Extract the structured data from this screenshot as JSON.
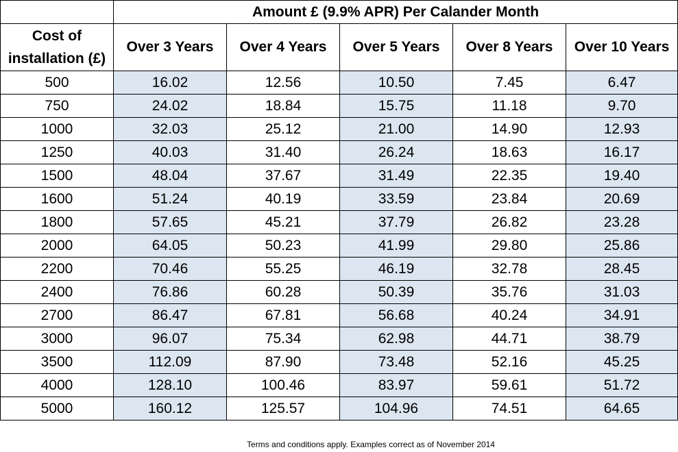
{
  "table": {
    "title": "Amount £ (9.9% APR) Per Calander Month",
    "cost_header": "Cost of installation (£)",
    "columns": [
      "Over 3 Years",
      "Over 4 Years",
      "Over 5 Years",
      "Over 8 Years",
      "Over 10 Years"
    ],
    "shade_color": "#dce6f1",
    "rows": [
      {
        "cost": "500",
        "values": [
          "16.02",
          "12.56",
          "10.50",
          "7.45",
          "6.47"
        ]
      },
      {
        "cost": "750",
        "values": [
          "24.02",
          "18.84",
          "15.75",
          "11.18",
          "9.70"
        ]
      },
      {
        "cost": "1000",
        "values": [
          "32.03",
          "25.12",
          "21.00",
          "14.90",
          "12.93"
        ]
      },
      {
        "cost": "1250",
        "values": [
          "40.03",
          "31.40",
          "26.24",
          "18.63",
          "16.17"
        ]
      },
      {
        "cost": "1500",
        "values": [
          "48.04",
          "37.67",
          "31.49",
          "22.35",
          "19.40"
        ]
      },
      {
        "cost": "1600",
        "values": [
          "51.24",
          "40.19",
          "33.59",
          "23.84",
          "20.69"
        ]
      },
      {
        "cost": "1800",
        "values": [
          "57.65",
          "45.21",
          "37.79",
          "26.82",
          "23.28"
        ]
      },
      {
        "cost": "2000",
        "values": [
          "64.05",
          "50.23",
          "41.99",
          "29.80",
          "25.86"
        ]
      },
      {
        "cost": "2200",
        "values": [
          "70.46",
          "55.25",
          "46.19",
          "32.78",
          "28.45"
        ]
      },
      {
        "cost": "2400",
        "values": [
          "76.86",
          "60.28",
          "50.39",
          "35.76",
          "31.03"
        ]
      },
      {
        "cost": "2700",
        "values": [
          "86.47",
          "67.81",
          "56.68",
          "40.24",
          "34.91"
        ]
      },
      {
        "cost": "3000",
        "values": [
          "96.07",
          "75.34",
          "62.98",
          "44.71",
          "38.79"
        ]
      },
      {
        "cost": "3500",
        "values": [
          "112.09",
          "87.90",
          "73.48",
          "52.16",
          "45.25"
        ]
      },
      {
        "cost": "4000",
        "values": [
          "128.10",
          "100.46",
          "83.97",
          "59.61",
          "51.72"
        ]
      },
      {
        "cost": "5000",
        "values": [
          "160.12",
          "125.57",
          "104.96",
          "74.51",
          "64.65"
        ]
      }
    ]
  },
  "footnote": "Terms and conditions apply.  Examples correct as of November 2014"
}
